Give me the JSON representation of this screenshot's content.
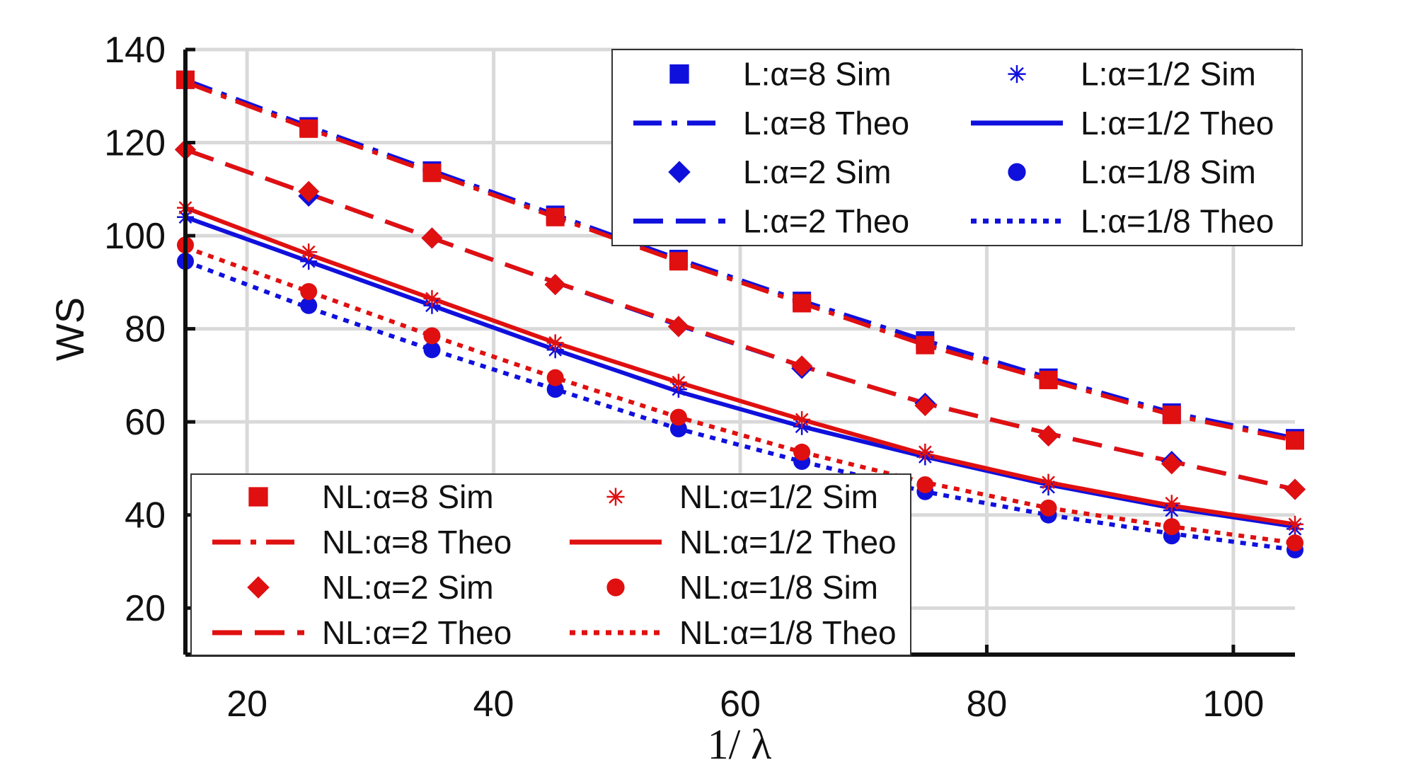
{
  "chart_data": {
    "type": "line",
    "title": "",
    "xlabel": "1/ λ",
    "ylabel": "WS",
    "xlim": [
      15,
      105
    ],
    "ylim": [
      10,
      140
    ],
    "xticks": [
      20,
      40,
      60,
      80,
      100
    ],
    "yticks": [
      20,
      40,
      60,
      80,
      100,
      120,
      140
    ],
    "grid": true,
    "sim_x": [
      15,
      25,
      35,
      45,
      55,
      65,
      75,
      85,
      95,
      105
    ],
    "theo_x": [
      15,
      25,
      35,
      45,
      55,
      65,
      75,
      85,
      95,
      105
    ],
    "series": [
      {
        "name": "L:α=8 Sim",
        "color": "#1010dd",
        "kind": "sim",
        "marker": "square",
        "values": [
          133.5,
          123.5,
          114,
          104.5,
          95,
          86,
          77.5,
          69.5,
          62,
          56.5
        ]
      },
      {
        "name": "L:α=8 Theo",
        "color": "#1010dd",
        "kind": "theo",
        "dash": "dashdot",
        "values": [
          133.5,
          123.5,
          114,
          104.5,
          95,
          86,
          77.5,
          69.5,
          62,
          56.5
        ]
      },
      {
        "name": "L:α=2 Sim",
        "color": "#1010dd",
        "kind": "sim",
        "marker": "diamond",
        "values": [
          118.5,
          108.5,
          99.5,
          89.5,
          80.5,
          71.5,
          64,
          57,
          51.5,
          45.5
        ]
      },
      {
        "name": "L:α=2 Theo",
        "color": "#1010dd",
        "kind": "theo",
        "dash": "dash",
        "values": [
          118.5,
          109,
          99.5,
          90,
          80.8,
          72,
          64,
          57.5,
          51.5,
          45.5
        ]
      },
      {
        "name": "L:α=1/2 Sim",
        "color": "#1010dd",
        "kind": "sim",
        "marker": "asterisk",
        "values": [
          104,
          94.5,
          85,
          75.5,
          67,
          59,
          52.5,
          46,
          41,
          37
        ]
      },
      {
        "name": "L:α=1/2 Theo",
        "color": "#1010dd",
        "kind": "theo",
        "dash": "solid",
        "values": [
          104,
          94.5,
          85,
          75.5,
          66.5,
          59,
          52.5,
          46.5,
          41.5,
          37.5
        ]
      },
      {
        "name": "L:α=1/8 Sim",
        "color": "#1010dd",
        "kind": "sim",
        "marker": "circle",
        "values": [
          94.5,
          85,
          75.5,
          67,
          58.5,
          51.5,
          45,
          40,
          35.5,
          32.5
        ]
      },
      {
        "name": "L:α=1/8 Theo",
        "color": "#1010dd",
        "kind": "theo",
        "dash": "dot",
        "values": [
          94.5,
          84.5,
          75.5,
          67,
          58.5,
          51.5,
          45,
          40,
          36,
          32.5
        ]
      },
      {
        "name": "NL:α=8 Sim",
        "color": "#e01010",
        "kind": "sim",
        "marker": "square",
        "values": [
          133.5,
          123,
          113.5,
          104,
          94.5,
          85.5,
          76.5,
          69,
          61.5,
          56
        ]
      },
      {
        "name": "NL:α=8 Theo",
        "color": "#e01010",
        "kind": "theo",
        "dash": "dashdot",
        "values": [
          133,
          123,
          113.5,
          104,
          94.5,
          85.5,
          76.5,
          69,
          61.5,
          56
        ]
      },
      {
        "name": "NL:α=2 Sim",
        "color": "#e01010",
        "kind": "sim",
        "marker": "diamond",
        "values": [
          118.5,
          109.5,
          99.5,
          89.5,
          80.5,
          72,
          63.5,
          57,
          51,
          45.5
        ]
      },
      {
        "name": "NL:α=2 Theo",
        "color": "#e01010",
        "kind": "theo",
        "dash": "dash",
        "values": [
          118.5,
          109,
          99.5,
          90,
          81,
          72,
          64,
          57.5,
          51.5,
          45.5
        ]
      },
      {
        "name": "NL:α=1/2 Sim",
        "color": "#e01010",
        "kind": "sim",
        "marker": "asterisk",
        "values": [
          106,
          96.5,
          86.5,
          77,
          68.5,
          60.5,
          53.5,
          47,
          42.5,
          38
        ]
      },
      {
        "name": "NL:α=1/2 Theo",
        "color": "#e01010",
        "kind": "theo",
        "dash": "solid",
        "values": [
          106,
          96,
          86.5,
          77,
          68.5,
          60.5,
          53,
          47,
          42,
          38
        ]
      },
      {
        "name": "NL:α=1/8 Sim",
        "color": "#e01010",
        "kind": "sim",
        "marker": "circle",
        "values": [
          98,
          88,
          78.5,
          69.5,
          61,
          53.5,
          46.5,
          41.5,
          37.5,
          34
        ]
      },
      {
        "name": "NL:α=1/8 Theo",
        "color": "#e01010",
        "kind": "theo",
        "dash": "dot",
        "values": [
          97.5,
          88,
          78.5,
          69.5,
          61,
          53.5,
          47,
          41.5,
          37.5,
          34
        ]
      }
    ],
    "legends": [
      {
        "placement": "top-right",
        "entries": [
          "L:α=8 Sim",
          "L:α=1/2 Sim",
          "L:α=8 Theo",
          "L:α=1/2 Theo",
          "L:α=2 Sim",
          "L:α=1/8 Sim",
          "L:α=2 Theo",
          "L:α=1/8 Theo"
        ]
      },
      {
        "placement": "bottom-left",
        "entries": [
          "NL:α=8 Sim",
          "NL:α=1/2 Sim",
          "NL:α=8 Theo",
          "NL:α=1/2 Theo",
          "NL:α=2 Sim",
          "NL:α=1/8 Sim",
          "NL:α=2 Theo",
          "NL:α=1/8 Theo"
        ]
      }
    ]
  }
}
